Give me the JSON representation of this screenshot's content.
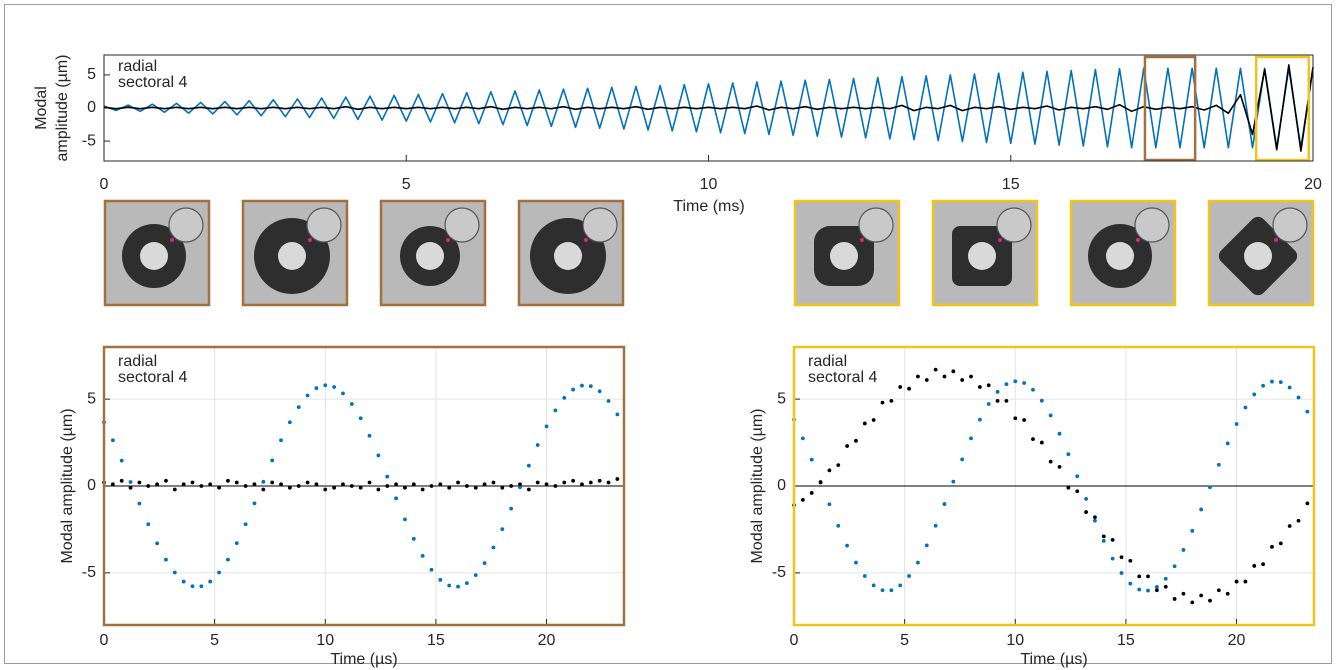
{
  "chart_data": [
    {
      "type": "line",
      "xlabel": "Time (ms)",
      "ylabel": [
        "Modal",
        "amplitude (µm)"
      ],
      "xlim": [
        0,
        20
      ],
      "ylim": [
        -8,
        8
      ],
      "xticks": [
        0,
        5,
        10,
        15,
        20
      ],
      "yticks": [
        -5,
        0,
        5
      ],
      "grid": false,
      "legend": "upper left",
      "highlights": [
        {
          "xlim": [
            17.22,
            18.05
          ],
          "color": "#a3703f"
        },
        {
          "xlim": [
            19.06,
            19.93
          ],
          "color": "#f2c31b"
        }
      ],
      "x": [
        0,
        0.2,
        0.4,
        0.6,
        0.8,
        1,
        1.2,
        1.4,
        1.6,
        1.8,
        2,
        2.2,
        2.4,
        2.6,
        2.8,
        3,
        3.2,
        3.4,
        3.6,
        3.8,
        4,
        4.2,
        4.4,
        4.6,
        4.8,
        5,
        5.2,
        5.4,
        5.6,
        5.8,
        6,
        6.2,
        6.4,
        6.6,
        6.8,
        7,
        7.2,
        7.4,
        7.6,
        7.8,
        8,
        8.2,
        8.4,
        8.6,
        8.8,
        9,
        9.2,
        9.4,
        9.6,
        9.8,
        10,
        10.2,
        10.4,
        10.6,
        10.8,
        11,
        11.2,
        11.4,
        11.6,
        11.8,
        12,
        12.2,
        12.4,
        12.6,
        12.8,
        13,
        13.2,
        13.4,
        13.6,
        13.8,
        14,
        14.2,
        14.4,
        14.6,
        14.8,
        15,
        15.2,
        15.4,
        15.6,
        15.8,
        16,
        16.2,
        16.4,
        16.6,
        16.8,
        17,
        17.2,
        17.4,
        17.6,
        17.8,
        18,
        18.2,
        18.4,
        18.6,
        18.8,
        19,
        19.2,
        19.4,
        19.6,
        19.8,
        20
      ],
      "series": [
        {
          "name": "radial",
          "color": "#0072bd",
          "values": [
            0.3,
            -0.37,
            0.43,
            -0.5,
            0.57,
            -0.64,
            0.7,
            -0.77,
            0.84,
            -0.9,
            0.97,
            -1.04,
            1.1,
            -1.17,
            1.24,
            -1.31,
            1.37,
            -1.44,
            1.51,
            -1.57,
            1.64,
            -1.71,
            1.78,
            -1.84,
            1.91,
            -1.98,
            2.04,
            -2.11,
            2.18,
            -2.24,
            2.31,
            -2.38,
            2.45,
            -2.51,
            2.58,
            -2.65,
            2.71,
            -2.78,
            2.85,
            -2.92,
            2.98,
            -3.05,
            3.12,
            -3.18,
            3.25,
            -3.32,
            3.38,
            -3.45,
            3.52,
            -3.59,
            3.65,
            -3.72,
            3.79,
            -3.85,
            3.92,
            -3.99,
            4.06,
            -4.12,
            4.19,
            -4.26,
            4.32,
            -4.39,
            4.46,
            -4.52,
            4.59,
            -4.66,
            4.73,
            -4.79,
            4.86,
            -4.93,
            4.99,
            -5.06,
            5.13,
            -5.2,
            5.26,
            -5.33,
            5.4,
            -5.46,
            5.53,
            -5.6,
            5.66,
            -5.73,
            5.8,
            -5.87,
            5.93,
            -6.0,
            6.0,
            -6.0,
            6.0,
            -6.0,
            6.0,
            -6.0,
            6.0,
            -6.0,
            6.0,
            -6.0,
            6.0,
            -6.0,
            6.0,
            -6.0,
            6.0
          ]
        },
        {
          "name": "sectoral 4",
          "color": "#000000",
          "values": [
            0.1,
            -0.1,
            0.1,
            -0.1,
            0.1,
            -0.1,
            0.1,
            -0.1,
            0.1,
            -0.1,
            0.1,
            -0.1,
            0.1,
            -0.1,
            0.1,
            -0.1,
            0.1,
            -0.1,
            0.1,
            -0.1,
            0.2,
            -0.2,
            0.1,
            -0.1,
            0.1,
            -0.1,
            0.1,
            -0.1,
            0.1,
            -0.1,
            0.1,
            -0.1,
            0.2,
            -0.2,
            0.1,
            -0.1,
            0.1,
            -0.1,
            0.2,
            -0.2,
            0.1,
            -0.1,
            0.1,
            -0.1,
            0.2,
            -0.2,
            0.1,
            -0.1,
            0.1,
            -0.1,
            0.1,
            -0.1,
            0.1,
            -0.1,
            0.3,
            -0.3,
            0.1,
            -0.1,
            0.2,
            -0.2,
            0.1,
            -0.1,
            0.1,
            -0.1,
            0.1,
            -0.1,
            0.4,
            -0.4,
            0.1,
            -0.1,
            0.4,
            -0.4,
            0.1,
            -0.1,
            0.2,
            -0.2,
            0.1,
            -0.1,
            0.3,
            -0.3,
            0.1,
            -0.1,
            0.2,
            -0.2,
            0.5,
            -0.5,
            0.2,
            -0.2,
            0.1,
            -0.1,
            0.2,
            -0.3,
            0.4,
            -0.8,
            2.0,
            -4.0,
            5.8,
            -6.3,
            6.5,
            -6.5,
            6.2
          ]
        }
      ]
    },
    {
      "type": "scatter",
      "xlabel": "Time (µs)",
      "ylabel": "Modal amplitude (µm)",
      "xlim": [
        0,
        23.5
      ],
      "ylim": [
        -8,
        8
      ],
      "xticks": [
        0,
        5,
        10,
        15,
        20
      ],
      "yticks": [
        -5,
        0,
        5
      ],
      "grid": true,
      "zero_line": true,
      "legend": "upper left",
      "frame_color": "#a3703f",
      "x": [
        0,
        0.4,
        0.8,
        1.2,
        1.6,
        2,
        2.4,
        2.8,
        3.2,
        3.6,
        4,
        4.4,
        4.8,
        5.2,
        5.6,
        6,
        6.4,
        6.8,
        7.2,
        7.6,
        8,
        8.4,
        8.8,
        9.2,
        9.6,
        10,
        10.4,
        10.8,
        11.2,
        11.6,
        12,
        12.4,
        12.8,
        13.2,
        13.6,
        14,
        14.4,
        14.8,
        15.2,
        15.6,
        16,
        16.4,
        16.8,
        17.2,
        17.6,
        18,
        18.4,
        18.8,
        19.2,
        19.6,
        20,
        20.4,
        20.8,
        21.2,
        21.6,
        22,
        22.4,
        22.8,
        23.2
      ],
      "series": [
        {
          "name": "radial",
          "color": "#0072bd",
          "values": [
            3.67,
            2.63,
            1.46,
            0.23,
            -1.01,
            -2.2,
            -3.3,
            -4.24,
            -4.98,
            -5.5,
            -5.77,
            -5.77,
            -5.5,
            -4.98,
            -4.24,
            -3.29,
            -2.2,
            -1.0,
            0.24,
            1.47,
            2.63,
            3.67,
            4.54,
            5.21,
            5.63,
            5.8,
            5.7,
            5.33,
            4.72,
            3.9,
            2.89,
            1.76,
            0.54,
            -0.71,
            -1.92,
            -3.04,
            -4.02,
            -4.82,
            -5.4,
            -5.73,
            -5.79,
            -5.59,
            -5.13,
            -4.44,
            -3.54,
            -2.48,
            -1.3,
            -0.07,
            1.17,
            2.36,
            3.43,
            4.35,
            5.07,
            5.55,
            5.78,
            5.75,
            5.45,
            4.89,
            4.12
          ]
        },
        {
          "name": "sectoral 4",
          "color": "#000000",
          "values": [
            0.2,
            0.1,
            0.3,
            -0.1,
            0.2,
            0.0,
            0.1,
            0.3,
            -0.2,
            0.1,
            0.2,
            0.0,
            0.1,
            -0.1,
            0.3,
            0.2,
            0.0,
            0.1,
            -0.2,
            0.2,
            0.1,
            -0.1,
            0.0,
            0.2,
            0.1,
            -0.2,
            -0.1,
            0.1,
            0.0,
            -0.1,
            0.2,
            -0.2,
            0.0,
            0.1,
            -0.1,
            0.1,
            -0.2,
            0.0,
            0.1,
            -0.1,
            0.2,
            0.0,
            -0.1,
            0.1,
            0.2,
            -0.1,
            0.0,
            0.1,
            -0.2,
            0.2,
            0.1,
            0.0,
            0.2,
            0.3,
            0.1,
            0.2,
            0.3,
            0.2,
            0.4
          ]
        }
      ]
    },
    {
      "type": "scatter",
      "xlabel": "Time (µs)",
      "ylabel": "Modal amplitude (µm)",
      "xlim": [
        0,
        23.5
      ],
      "ylim": [
        -8,
        8
      ],
      "xticks": [
        0,
        5,
        10,
        15,
        20
      ],
      "yticks": [
        -5,
        0,
        5
      ],
      "grid": true,
      "zero_line": true,
      "legend": "upper left",
      "frame_color": "#f2c31b",
      "x": [
        0,
        0.4,
        0.8,
        1.2,
        1.6,
        2,
        2.4,
        2.8,
        3.2,
        3.6,
        4,
        4.4,
        4.8,
        5.2,
        5.6,
        6,
        6.4,
        6.8,
        7.2,
        7.6,
        8,
        8.4,
        8.8,
        9.2,
        9.6,
        10,
        10.4,
        10.8,
        11.2,
        11.6,
        12,
        12.4,
        12.8,
        13.2,
        13.6,
        14,
        14.4,
        14.8,
        15.2,
        15.6,
        16,
        16.4,
        16.8,
        17.2,
        17.6,
        18,
        18.4,
        18.8,
        19.2,
        19.6,
        20,
        20.4,
        20.8,
        21.2,
        21.6,
        22,
        22.4,
        22.8,
        23.2
      ],
      "series": [
        {
          "name": "radial",
          "color": "#0072bd",
          "values": [
            3.82,
            2.74,
            1.52,
            0.24,
            -1.05,
            -2.29,
            -3.43,
            -4.41,
            -5.18,
            -5.72,
            -6.0,
            -6.0,
            -5.72,
            -5.18,
            -4.41,
            -3.42,
            -2.29,
            -1.04,
            0.25,
            1.53,
            2.74,
            3.82,
            4.72,
            5.42,
            5.86,
            6.03,
            5.93,
            5.54,
            4.91,
            4.06,
            3.01,
            1.83,
            0.56,
            -0.74,
            -2.0,
            -3.16,
            -4.18,
            -5.01,
            -5.62,
            -5.96,
            -6.02,
            -5.81,
            -5.34,
            -4.62,
            -3.68,
            -2.58,
            -1.35,
            -0.07,
            1.22,
            2.45,
            3.57,
            4.52,
            5.27,
            5.77,
            6.01,
            5.98,
            5.67,
            5.09,
            4.28
          ]
        },
        {
          "name": "sectoral 4",
          "color": "#000000",
          "values": [
            -1.1,
            -0.8,
            -0.4,
            0.2,
            0.9,
            1.2,
            2.3,
            2.6,
            3.6,
            3.8,
            4.8,
            4.9,
            5.7,
            5.6,
            6.3,
            6.1,
            6.7,
            6.3,
            6.6,
            6.1,
            6.3,
            5.7,
            5.8,
            4.9,
            4.9,
            3.9,
            3.8,
            2.7,
            2.5,
            1.4,
            1.1,
            -0.1,
            -0.3,
            -1.5,
            -1.8,
            -2.9,
            -3.1,
            -4.1,
            -4.3,
            -5.2,
            -5.2,
            -6.0,
            -5.8,
            -6.5,
            -6.2,
            -6.7,
            -6.3,
            -6.6,
            -6.0,
            -6.2,
            -5.5,
            -5.5,
            -4.6,
            -4.5,
            -3.5,
            -3.3,
            -2.3,
            -2.0,
            -1.0
          ]
        }
      ]
    }
  ]
}
